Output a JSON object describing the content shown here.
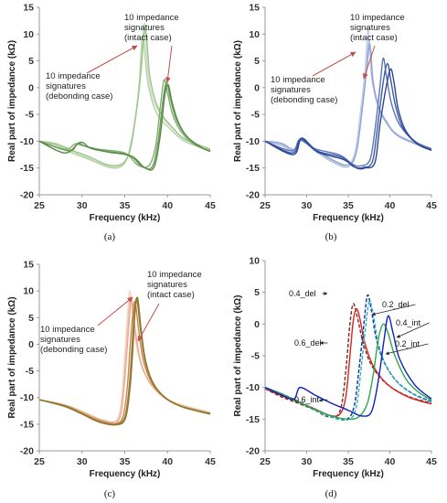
{
  "chart_data": [
    {
      "type": "line",
      "panel_label": "(a)",
      "ylabel": "Real part of impedance (kΩ)",
      "xlabel": "Frequency (kHz)",
      "xlim": [
        25,
        45
      ],
      "ylim": [
        -20,
        15
      ],
      "xticks": [
        25,
        30,
        35,
        40,
        45
      ],
      "yticks": [
        -20,
        -15,
        -10,
        -5,
        0,
        5,
        10,
        15
      ],
      "annotations": [
        {
          "lines": [
            "10 impedance",
            "signatures",
            "(intact case)"
          ]
        },
        {
          "lines": [
            "10 impedance",
            "signatures",
            "(debonding case)"
          ]
        }
      ],
      "series": [
        {
          "color": "#c9dfc0",
          "x": [
            25,
            27,
            29,
            31,
            33,
            34.5,
            35.5,
            36.3,
            36.8,
            37.3,
            37.7,
            38.3,
            39.2,
            40.5,
            42,
            45
          ],
          "y": [
            -10,
            -10.6,
            -12,
            -13.3,
            -14.6,
            -14.5,
            -12,
            -5,
            2,
            12,
            3,
            -2,
            -5,
            -7.5,
            -9.5,
            -11.5
          ]
        },
        {
          "color": "#b3d2a6",
          "x": [
            25,
            27,
            29,
            31,
            33,
            34.5,
            35.4,
            36.2,
            36.7,
            37.1,
            37.6,
            38.2,
            39,
            40.5,
            42,
            45
          ],
          "y": [
            -10,
            -10.8,
            -12.3,
            -13.5,
            -14.8,
            -14.8,
            -12.5,
            -6,
            1,
            10,
            2,
            -2.5,
            -5.5,
            -8,
            -10,
            -11.8
          ]
        },
        {
          "color": "#9fc58e",
          "x": [
            25,
            27,
            29,
            31,
            33,
            34.6,
            35.6,
            36.4,
            36.9,
            37.4,
            37.9,
            38.5,
            39.3,
            40.8,
            42,
            45
          ],
          "y": [
            -10,
            -10.5,
            -11.8,
            -13,
            -14.4,
            -14.3,
            -11.8,
            -4,
            3,
            11,
            2.5,
            -2,
            -5,
            -7.8,
            -9.6,
            -11.5
          ]
        },
        {
          "color": "#82ad70",
          "x": [
            25,
            28,
            29.2,
            30,
            32,
            35,
            36.5,
            37.8,
            38.6,
            39.2,
            39.6,
            40,
            40.6,
            41.5,
            43,
            45
          ],
          "y": [
            -10,
            -11.5,
            -10.5,
            -10.8,
            -11.5,
            -12.2,
            -14.4,
            -14.6,
            -11,
            -3,
            1.5,
            -1,
            -5,
            -8,
            -10.5,
            -11.8
          ]
        },
        {
          "color": "#6d9d5a",
          "x": [
            25,
            28.5,
            29.5,
            30.5,
            32.5,
            35.5,
            37,
            38.2,
            38.9,
            39.5,
            39.9,
            40.3,
            41,
            42,
            43.5,
            45
          ],
          "y": [
            -10,
            -11.8,
            -10.4,
            -11,
            -11.8,
            -12.6,
            -14.7,
            -14.8,
            -10,
            -2,
            1,
            -1.8,
            -5.8,
            -8.6,
            -10.8,
            -11.9
          ]
        },
        {
          "color": "#558a43",
          "x": [
            25,
            28,
            29.8,
            31,
            33,
            35.8,
            37.3,
            38.4,
            39.1,
            39.7,
            40.1,
            40.5,
            41.2,
            42.2,
            43.8,
            45
          ],
          "y": [
            -10,
            -12.2,
            -10.2,
            -11.3,
            -12,
            -12.8,
            -14.9,
            -14.9,
            -9.5,
            -1.2,
            0.5,
            -2.5,
            -6.2,
            -9,
            -11,
            -11.9
          ]
        }
      ]
    },
    {
      "type": "line",
      "panel_label": "(b)",
      "ylabel": "Real part of impedance (kΩ)",
      "xlabel": "Frequency (kHz)",
      "xlim": [
        25,
        45
      ],
      "ylim": [
        -20,
        15
      ],
      "xticks": [
        25,
        30,
        35,
        40,
        45
      ],
      "yticks": [
        -20,
        -15,
        -10,
        -5,
        0,
        5,
        10,
        15
      ],
      "annotations": [
        {
          "lines": [
            "10 impedance",
            "signatures",
            "(intact case)"
          ]
        },
        {
          "lines": [
            "10 impedance",
            "signatures",
            "(debonding case)"
          ]
        }
      ],
      "series": [
        {
          "color": "#c6d0e8",
          "x": [
            25,
            27,
            28.5,
            29.2,
            31,
            33,
            34.8,
            35.8,
            36.5,
            37,
            37.4,
            37.8,
            38.5,
            39.5,
            41,
            45
          ],
          "y": [
            -10,
            -10.6,
            -11.5,
            -9.5,
            -11.5,
            -13.5,
            -14.5,
            -12,
            -4,
            3,
            11,
            2,
            -3,
            -6,
            -8.8,
            -11.5
          ]
        },
        {
          "color": "#aebde0",
          "x": [
            25,
            27,
            28.6,
            29.3,
            31,
            33,
            34.9,
            35.9,
            36.6,
            37.1,
            37.5,
            37.9,
            38.6,
            39.6,
            41,
            45
          ],
          "y": [
            -10,
            -10.8,
            -12,
            -9.8,
            -11.8,
            -13.8,
            -14.8,
            -12.5,
            -5,
            2,
            9,
            1.5,
            -3.5,
            -6.4,
            -9,
            -11.7
          ]
        },
        {
          "color": "#8fa3d3",
          "x": [
            25,
            27,
            28.7,
            29.4,
            31,
            33,
            35,
            36,
            36.7,
            37.2,
            37.6,
            38,
            38.7,
            39.7,
            41.2,
            45
          ],
          "y": [
            -10,
            -10.4,
            -11.8,
            -9.6,
            -11.4,
            -13.4,
            -14.4,
            -11.8,
            -3.6,
            3.2,
            8,
            1,
            -3.8,
            -6.8,
            -9.2,
            -11.6
          ]
        },
        {
          "color": "#5a74b8",
          "x": [
            25,
            28.2,
            29.2,
            31,
            34,
            35.5,
            36.5,
            37.6,
            38.2,
            38.8,
            39.2,
            39.6,
            40.2,
            41.2,
            43,
            45
          ],
          "y": [
            -10,
            -11.8,
            -9.8,
            -11.4,
            -12.6,
            -14.3,
            -14.6,
            -13.5,
            -8,
            0,
            5.5,
            2,
            -3,
            -7,
            -10,
            -11.4
          ]
        },
        {
          "color": "#3d5aa5",
          "x": [
            25,
            28.3,
            29.3,
            31.2,
            34.2,
            35.7,
            36.8,
            37.9,
            38.5,
            39.2,
            39.7,
            40.1,
            40.7,
            41.6,
            43.2,
            45
          ],
          "y": [
            -10,
            -12.2,
            -9.6,
            -11.8,
            -13,
            -14.8,
            -14.9,
            -13.8,
            -7.5,
            1,
            4.5,
            1.5,
            -3.5,
            -7.6,
            -10.4,
            -11.6
          ]
        },
        {
          "color": "#2b4694",
          "x": [
            25,
            28.4,
            29.4,
            31.3,
            34.4,
            36,
            37,
            38.2,
            38.8,
            39.6,
            40.1,
            40.5,
            41,
            41.9,
            43.4,
            45
          ],
          "y": [
            -10,
            -12.5,
            -9.4,
            -12,
            -13.4,
            -15,
            -15,
            -14,
            -7,
            0.5,
            3.5,
            1,
            -4,
            -8,
            -10.6,
            -11.7
          ]
        }
      ]
    },
    {
      "type": "line",
      "panel_label": "(c)",
      "ylabel": "Real part of impedance (kΩ)",
      "xlabel": "Frequency (kHz)",
      "xlim": [
        25,
        45
      ],
      "ylim": [
        -20,
        15
      ],
      "xticks": [
        25,
        30,
        35,
        40,
        45
      ],
      "yticks": [
        -20,
        -15,
        -10,
        -5,
        0,
        5,
        10,
        15
      ],
      "annotations": [
        {
          "lines": [
            "10 impedance",
            "signatures",
            "(intact case)"
          ]
        },
        {
          "lines": [
            "10 impedance",
            "signatures",
            "(debonding case)"
          ]
        }
      ],
      "series": [
        {
          "color": "#f6d3c2",
          "x": [
            25,
            28,
            30,
            32,
            33.5,
            34.3,
            34.7,
            35,
            35.3,
            35.6,
            36,
            36.6,
            37.5,
            39,
            41,
            45
          ],
          "y": [
            -10.4,
            -11.5,
            -12.8,
            -14.2,
            -14.8,
            -13.5,
            -9,
            -2,
            5,
            10,
            4,
            -2,
            -6,
            -9,
            -11,
            -12.8
          ]
        },
        {
          "color": "#efbfa8",
          "x": [
            25,
            28,
            30,
            32,
            33.6,
            34.4,
            34.8,
            35.1,
            35.4,
            35.7,
            36.1,
            36.7,
            37.6,
            39.1,
            41.1,
            45
          ],
          "y": [
            -10.4,
            -11.6,
            -13,
            -14.4,
            -15,
            -13.8,
            -9.5,
            -3,
            4,
            9,
            3.5,
            -2.4,
            -6.4,
            -9.3,
            -11.2,
            -12.9
          ]
        },
        {
          "color": "#e8ae92",
          "x": [
            25,
            28,
            30,
            32,
            33.7,
            34.5,
            34.9,
            35.2,
            35.5,
            35.8,
            36.2,
            36.8,
            37.7,
            39.2,
            41.2,
            45
          ],
          "y": [
            -10.4,
            -11.4,
            -12.6,
            -14,
            -14.6,
            -13.2,
            -8.5,
            -2.5,
            4,
            8.5,
            3,
            -2.8,
            -6.6,
            -9.5,
            -11.3,
            -12.9
          ]
        },
        {
          "color": "#c9864f",
          "x": [
            25,
            28,
            30,
            32,
            33.9,
            34.8,
            35.3,
            35.6,
            35.9,
            36.2,
            36.6,
            37.1,
            38,
            39.5,
            41.5,
            45
          ],
          "y": [
            -10.4,
            -11.5,
            -12.9,
            -14.3,
            -14.9,
            -13.5,
            -8,
            -1,
            5,
            8,
            3,
            -2.5,
            -6.8,
            -9.8,
            -11.6,
            -13
          ]
        },
        {
          "color": "#a8783a",
          "x": [
            25,
            28,
            30,
            32,
            34,
            35,
            35.5,
            35.8,
            36.1,
            36.4,
            36.8,
            37.3,
            38.2,
            39.7,
            41.7,
            45
          ],
          "y": [
            -10.4,
            -11.6,
            -13,
            -14.5,
            -15,
            -13.6,
            -8.2,
            -1.5,
            5.5,
            8.5,
            3.2,
            -2.6,
            -7,
            -10,
            -11.7,
            -13
          ]
        },
        {
          "color": "#8a7a2c",
          "x": [
            25,
            28,
            30,
            32,
            34.1,
            35.1,
            35.6,
            35.9,
            36.2,
            36.5,
            36.9,
            37.4,
            38.3,
            39.8,
            41.8,
            45
          ],
          "y": [
            -10.4,
            -11.7,
            -13.1,
            -14.6,
            -15.1,
            -13.8,
            -8.4,
            -2,
            6,
            8.7,
            3,
            -2.8,
            -7.2,
            -10.1,
            -11.8,
            -13.1
          ]
        }
      ]
    },
    {
      "type": "line",
      "panel_label": "(d)",
      "ylabel": "Real part of impedance (kΩ)",
      "xlabel": "Frequency (kHz)",
      "xlim": [
        25,
        45
      ],
      "ylim": [
        -20,
        10
      ],
      "xticks": [
        25,
        30,
        35,
        40,
        45
      ],
      "yticks": [
        -20,
        -15,
        -10,
        -5,
        0,
        5,
        10
      ],
      "series": [
        {
          "name": "0.6_del",
          "color": "#7a2a1c",
          "dash": "4,2",
          "x": [
            25,
            27,
            29,
            31,
            32.5,
            33.7,
            34.3,
            34.8,
            35.2,
            35.6,
            36.1,
            36.8,
            37.8,
            39.5,
            42,
            45
          ],
          "y": [
            -10.2,
            -11.5,
            -12.5,
            -13.6,
            -14.6,
            -14.4,
            -12,
            -6,
            0,
            3.2,
            1,
            -3,
            -6.5,
            -9.3,
            -11.3,
            -12.5
          ]
        },
        {
          "name": "0.6_int",
          "color": "#e02020",
          "dash": "",
          "x": [
            25,
            27,
            29,
            31,
            32.8,
            34,
            34.7,
            35.2,
            35.6,
            36,
            36.4,
            37,
            38,
            39.7,
            42.2,
            45
          ],
          "y": [
            -10.2,
            -11.3,
            -12.3,
            -13.4,
            -14.4,
            -14.2,
            -11.5,
            -5,
            0.5,
            2.4,
            0.8,
            -3,
            -6.6,
            -9.5,
            -11.5,
            -12.6
          ]
        },
        {
          "name": "0.4_del",
          "color": "#1030a0",
          "dash": "4,2",
          "x": [
            25,
            27,
            29,
            31,
            33,
            34.8,
            35.7,
            36.3,
            36.8,
            37.3,
            37.8,
            38.4,
            39.3,
            40.8,
            42.8,
            45
          ],
          "y": [
            -10,
            -11,
            -12.2,
            -13.5,
            -14.6,
            -15,
            -13,
            -7,
            -1,
            4.5,
            2,
            -2.5,
            -6,
            -9,
            -11,
            -12.2
          ]
        },
        {
          "name": "0.2_del",
          "color": "#22b5c0",
          "dash": "4,2",
          "x": [
            25,
            27,
            29,
            31,
            33,
            34.9,
            35.9,
            36.5,
            37,
            37.5,
            38,
            38.6,
            39.5,
            41,
            43,
            45
          ],
          "y": [
            -10.1,
            -11.1,
            -12.3,
            -13.6,
            -14.7,
            -15.1,
            -13.5,
            -7.5,
            -1.5,
            3.5,
            1.5,
            -3,
            -6.4,
            -9.3,
            -11.2,
            -12.3
          ]
        },
        {
          "name": "0.2_int",
          "color": "#2ea84a",
          "dash": "",
          "x": [
            25,
            27,
            29,
            31,
            33,
            35,
            36.3,
            37.3,
            38,
            38.6,
            39.2,
            39.8,
            40.6,
            42,
            43.5,
            45
          ],
          "y": [
            -10,
            -11,
            -12.3,
            -13.5,
            -14.5,
            -15,
            -14.6,
            -12.5,
            -8,
            -2.5,
            0,
            -1.5,
            -5,
            -8.8,
            -10.8,
            -12
          ]
        },
        {
          "name": "0.4_int",
          "color": "#1020c0",
          "dash": "",
          "x": [
            25,
            27,
            28.5,
            29.2,
            31,
            33,
            35,
            36.6,
            37.8,
            38.6,
            39.3,
            39.8,
            40.4,
            41.2,
            43,
            45
          ],
          "y": [
            -10,
            -11.2,
            -11.8,
            -10,
            -11.2,
            -12.5,
            -13.6,
            -14.5,
            -13.8,
            -9,
            -2.5,
            1.3,
            -1.5,
            -5.6,
            -9.6,
            -11.8
          ]
        }
      ]
    }
  ]
}
